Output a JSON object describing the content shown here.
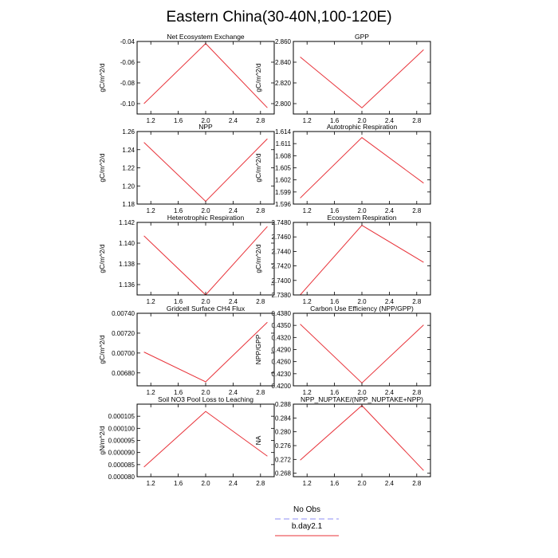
{
  "figure_title": "Eastern China(30-40N,100-120E)",
  "legend": [
    {
      "label": "No Obs",
      "color": "#8c8cf5",
      "dashed": true
    },
    {
      "label": "b.day2.1",
      "color": "#e8333a",
      "dashed": false
    }
  ],
  "chart_data": [
    {
      "type": "line",
      "title": "Net Ecosystem Exchange",
      "ylabel": "gC/m^2/d",
      "x": [
        1.1,
        2.0,
        2.9
      ],
      "xlim": [
        1.0,
        3.0
      ],
      "xticks": [
        1.2,
        1.6,
        2.0,
        2.4,
        2.8
      ],
      "xtick_labels": [
        "1.2",
        "1.6",
        "2.0",
        "2.4",
        "2.8"
      ],
      "ylim": [
        -0.11,
        -0.04
      ],
      "yticks": [
        -0.1,
        -0.08,
        -0.06,
        -0.04
      ],
      "ytick_labels": [
        "-0.10",
        "-0.08",
        "-0.06",
        "-0.04"
      ],
      "series": [
        {
          "values": [
            -0.1,
            -0.042,
            -0.104
          ],
          "color": "#e8333a"
        }
      ]
    },
    {
      "type": "line",
      "title": "GPP",
      "ylabel": "gC/m^2/d",
      "x": [
        1.1,
        2.0,
        2.9
      ],
      "xlim": [
        1.0,
        3.0
      ],
      "xticks": [
        1.2,
        1.6,
        2.0,
        2.4,
        2.8
      ],
      "xtick_labels": [
        "1.2",
        "1.6",
        "2.0",
        "2.4",
        "2.8"
      ],
      "ylim": [
        2.79,
        2.86
      ],
      "yticks": [
        2.8,
        2.82,
        2.84,
        2.86
      ],
      "ytick_labels": [
        "2.800",
        "2.820",
        "2.840",
        "2.860"
      ],
      "series": [
        {
          "values": [
            2.845,
            2.796,
            2.852
          ],
          "color": "#e8333a"
        }
      ]
    },
    {
      "type": "line",
      "title": "NPP",
      "ylabel": "gC/m^2/d",
      "x": [
        1.1,
        2.0,
        2.9
      ],
      "xlim": [
        1.0,
        3.0
      ],
      "xticks": [
        1.2,
        1.6,
        2.0,
        2.4,
        2.8
      ],
      "xtick_labels": [
        "1.2",
        "1.6",
        "2.0",
        "2.4",
        "2.8"
      ],
      "ylim": [
        1.18,
        1.26
      ],
      "yticks": [
        1.18,
        1.2,
        1.22,
        1.24,
        1.26
      ],
      "ytick_labels": [
        "1.18",
        "1.20",
        "1.22",
        "1.24",
        "1.26"
      ],
      "series": [
        {
          "values": [
            1.248,
            1.183,
            1.252
          ],
          "color": "#e8333a"
        }
      ]
    },
    {
      "type": "line",
      "title": "Autotrophic Respiration",
      "ylabel": "gC/m^2/d",
      "x": [
        1.1,
        2.0,
        2.9
      ],
      "xlim": [
        1.0,
        3.0
      ],
      "xticks": [
        1.2,
        1.6,
        2.0,
        2.4,
        2.8
      ],
      "xtick_labels": [
        "1.2",
        "1.6",
        "2.0",
        "2.4",
        "2.8"
      ],
      "ylim": [
        1.596,
        1.614
      ],
      "yticks": [
        1.596,
        1.599,
        1.602,
        1.605,
        1.608,
        1.611,
        1.614
      ],
      "ytick_labels": [
        "1.596",
        "1.599",
        "1.602",
        "1.605",
        "1.608",
        "1.611",
        "1.614"
      ],
      "series": [
        {
          "values": [
            1.5975,
            1.6125,
            1.6012
          ],
          "color": "#e8333a"
        }
      ]
    },
    {
      "type": "line",
      "title": "Heterotrophic Respiration",
      "ylabel": "gC/m^2/d",
      "x": [
        1.1,
        2.0,
        2.9
      ],
      "xlim": [
        1.0,
        3.0
      ],
      "xticks": [
        1.2,
        1.6,
        2.0,
        2.4,
        2.8
      ],
      "xtick_labels": [
        "1.2",
        "1.6",
        "2.0",
        "2.4",
        "2.8"
      ],
      "ylim": [
        1.135,
        1.142
      ],
      "yticks": [
        1.136,
        1.138,
        1.14,
        1.142
      ],
      "ytick_labels": [
        "1.136",
        "1.138",
        "1.140",
        "1.142"
      ],
      "series": [
        {
          "values": [
            1.1407,
            1.135,
            1.1416
          ],
          "color": "#e8333a"
        }
      ]
    },
    {
      "type": "line",
      "title": "Ecosystem Respiration",
      "ylabel": "gC/m^2/d",
      "x": [
        1.1,
        2.0,
        2.9
      ],
      "xlim": [
        1.0,
        3.0
      ],
      "xticks": [
        1.2,
        1.6,
        2.0,
        2.4,
        2.8
      ],
      "xtick_labels": [
        "1.2",
        "1.6",
        "2.0",
        "2.4",
        "2.8"
      ],
      "ylim": [
        2.738,
        2.748
      ],
      "yticks": [
        2.738,
        2.74,
        2.742,
        2.744,
        2.746,
        2.748
      ],
      "ytick_labels": [
        "2.7380",
        "2.7400",
        "2.7420",
        "2.7440",
        "2.7460",
        "2.7480"
      ],
      "series": [
        {
          "values": [
            2.738,
            2.7476,
            2.7425
          ],
          "color": "#e8333a"
        }
      ]
    },
    {
      "type": "line",
      "title": "Gridcell Surface CH4 Flux",
      "ylabel": "gC/m^2/d",
      "x": [
        1.1,
        2.0,
        2.9
      ],
      "xlim": [
        1.0,
        3.0
      ],
      "xticks": [
        1.2,
        1.6,
        2.0,
        2.4,
        2.8
      ],
      "xtick_labels": [
        "1.2",
        "1.6",
        "2.0",
        "2.4",
        "2.8"
      ],
      "ylim": [
        0.00667,
        0.0074
      ],
      "yticks": [
        0.0068,
        0.007,
        0.0072,
        0.0074
      ],
      "ytick_labels": [
        "0.00680",
        "0.00700",
        "0.00720",
        "0.00740"
      ],
      "series": [
        {
          "values": [
            0.00701,
            0.00671,
            0.00731
          ],
          "color": "#e8333a"
        }
      ]
    },
    {
      "type": "line",
      "title": "Carbon Use Efficiency (NPP/GPP)",
      "ylabel": "NPP/GPP",
      "x": [
        1.1,
        2.0,
        2.9
      ],
      "xlim": [
        1.0,
        3.0
      ],
      "xticks": [
        1.2,
        1.6,
        2.0,
        2.4,
        2.8
      ],
      "xtick_labels": [
        "1.2",
        "1.6",
        "2.0",
        "2.4",
        "2.8"
      ],
      "ylim": [
        0.42,
        0.438
      ],
      "yticks": [
        0.42,
        0.423,
        0.426,
        0.429,
        0.432,
        0.435,
        0.438
      ],
      "ytick_labels": [
        "0.4200",
        "0.4230",
        "0.4260",
        "0.4290",
        "0.4320",
        "0.4350",
        "0.4380"
      ],
      "series": [
        {
          "values": [
            0.4353,
            0.4207,
            0.4351
          ],
          "color": "#e8333a"
        }
      ]
    },
    {
      "type": "line",
      "title": "Soil NO3 Pool Loss to Leaching",
      "ylabel": "gN/m^2/d",
      "x": [
        1.1,
        2.0,
        2.9
      ],
      "xlim": [
        1.0,
        3.0
      ],
      "xticks": [
        1.2,
        1.6,
        2.0,
        2.4,
        2.8
      ],
      "xtick_labels": [
        "1.2",
        "1.6",
        "2.0",
        "2.4",
        "2.8"
      ],
      "ylim": [
        8e-05,
        0.00011
      ],
      "yticks": [
        8e-05,
        8.5e-05,
        9e-05,
        9.5e-05,
        0.0001,
        0.000105
      ],
      "ytick_labels": [
        "0.000080",
        "0.000085",
        "0.000090",
        "0.000095",
        "0.000100",
        "0.000105"
      ],
      "series": [
        {
          "values": [
            8.4e-05,
            0.000107,
            8.85e-05
          ],
          "color": "#e8333a"
        }
      ]
    },
    {
      "type": "line",
      "title": "NPP_NUPTAKE/(NPP_NUPTAKE+NPP)",
      "ylabel": "NA",
      "x": [
        1.1,
        2.0,
        2.9
      ],
      "xlim": [
        1.0,
        3.0
      ],
      "xticks": [
        1.2,
        1.6,
        2.0,
        2.4,
        2.8
      ],
      "xtick_labels": [
        "1.2",
        "1.6",
        "2.0",
        "2.4",
        "2.8"
      ],
      "ylim": [
        0.267,
        0.288
      ],
      "yticks": [
        0.268,
        0.272,
        0.276,
        0.28,
        0.284,
        0.288
      ],
      "ytick_labels": [
        "0.268",
        "0.272",
        "0.276",
        "0.280",
        "0.284",
        "0.288"
      ],
      "series": [
        {
          "values": [
            0.2718,
            0.2876,
            0.2688
          ],
          "color": "#e8333a"
        }
      ]
    }
  ]
}
